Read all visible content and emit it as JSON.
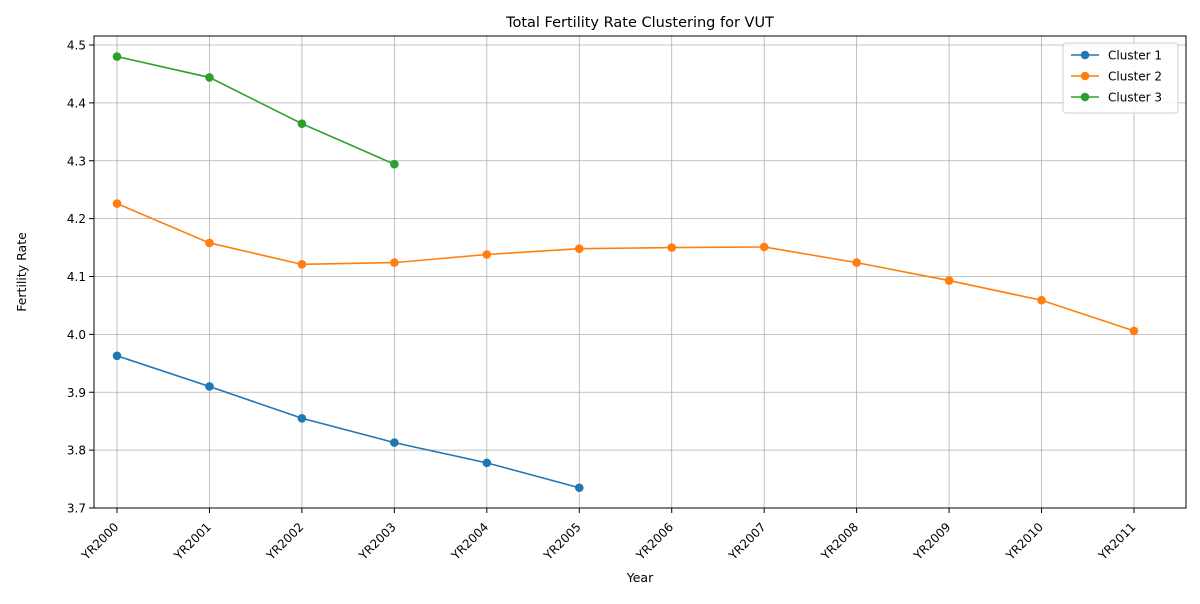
{
  "chart_data": {
    "type": "line",
    "title": "Total Fertility Rate Clustering for VUT",
    "xlabel": "Year",
    "ylabel": "Fertility Rate",
    "categories": [
      "YR2000",
      "YR2001",
      "YR2002",
      "YR2003",
      "YR2004",
      "YR2005",
      "YR2006",
      "YR2007",
      "YR2008",
      "YR2009",
      "YR2010",
      "YR2011"
    ],
    "ylim": [
      3.7,
      4.5
    ],
    "yticks": [
      3.7,
      3.8,
      3.9,
      4.0,
      4.1,
      4.2,
      4.3,
      4.4,
      4.5
    ],
    "ytick_labels": [
      "3.7",
      "3.8",
      "3.9",
      "4.0",
      "4.1",
      "4.2",
      "4.3",
      "4.4",
      "4.5"
    ],
    "grid": true,
    "legend_position": "top-right",
    "marker": "circle",
    "series": [
      {
        "name": "Cluster 1",
        "color": "#1f77b4",
        "values": [
          3.963,
          3.91,
          3.855,
          3.813,
          3.778,
          3.735,
          null,
          null,
          null,
          null,
          null,
          null
        ]
      },
      {
        "name": "Cluster 2",
        "color": "#ff7f0e",
        "values": [
          4.226,
          4.158,
          4.121,
          4.124,
          4.138,
          4.148,
          4.15,
          4.151,
          4.124,
          4.093,
          4.059,
          4.006
        ]
      },
      {
        "name": "Cluster 3",
        "color": "#2ca02c",
        "values": [
          4.48,
          4.444,
          4.364,
          4.294,
          null,
          null,
          null,
          null,
          null,
          null,
          null,
          null
        ]
      }
    ]
  }
}
